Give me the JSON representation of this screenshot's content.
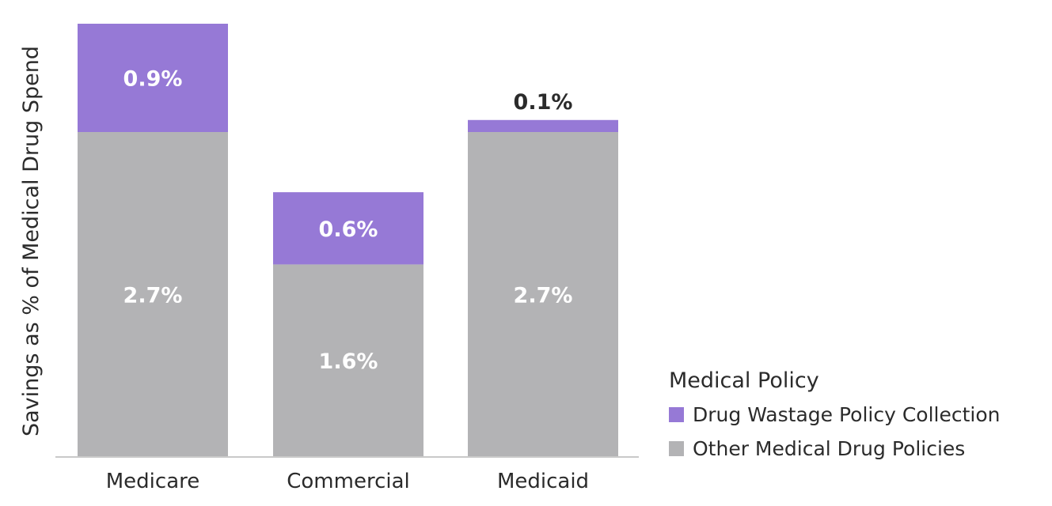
{
  "chart_data": {
    "type": "bar",
    "stacked": true,
    "categories": [
      "Medicare",
      "Commercial",
      "Medicaid"
    ],
    "series": [
      {
        "name": "Other Medical Drug Policies",
        "values": [
          2.7,
          1.6,
          2.7
        ],
        "labels": [
          "2.7%",
          "1.6%",
          "2.7%"
        ],
        "color": "#b3b3b5"
      },
      {
        "name": "Drug Wastage Policy Collection",
        "values": [
          0.9,
          0.6,
          0.1
        ],
        "labels": [
          "0.9%",
          "0.6%",
          "0.1%"
        ],
        "color": "#9679d6"
      }
    ],
    "ylabel": "Savings as % of Medical Drug Spend",
    "xlabel": "",
    "ylim": [
      0,
      3.6
    ],
    "legend": {
      "title": "Medical Policy",
      "placement": "right",
      "order": [
        "Drug Wastage Policy Collection",
        "Other Medical Drug Policies"
      ]
    },
    "grid": false
  }
}
